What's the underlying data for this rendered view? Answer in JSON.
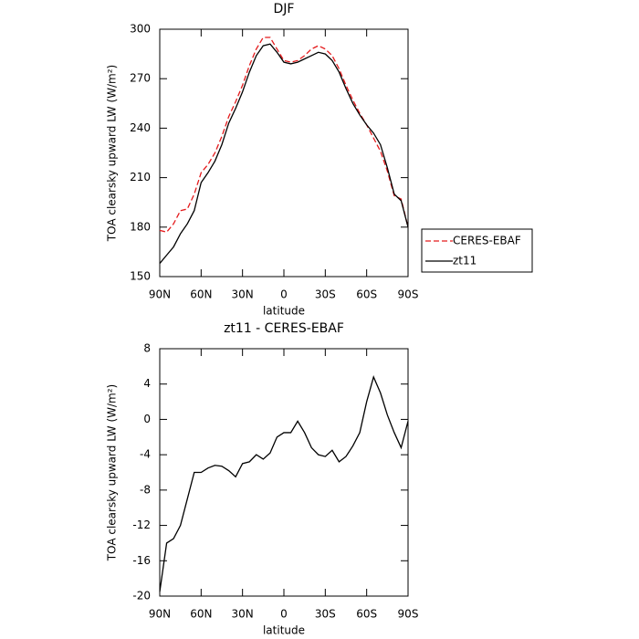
{
  "chart_data": [
    {
      "type": "line",
      "title": "DJF",
      "xlabel": "latitude",
      "ylabel": "TOA clearsky upward LW (W/m²)",
      "x": [
        90,
        85,
        80,
        75,
        70,
        65,
        60,
        55,
        50,
        45,
        40,
        35,
        30,
        25,
        20,
        15,
        10,
        5,
        0,
        -5,
        -10,
        -15,
        -20,
        -25,
        -30,
        -35,
        -40,
        -45,
        -50,
        -55,
        -60,
        -65,
        -70,
        -75,
        -80,
        -85,
        -90
      ],
      "xlim": [
        90,
        -90
      ],
      "xticks": [
        {
          "value": 90,
          "label": "90N"
        },
        {
          "value": 60,
          "label": "60N"
        },
        {
          "value": 30,
          "label": "30N"
        },
        0,
        {
          "value": -30,
          "label": "30S"
        },
        {
          "value": -60,
          "label": "60S"
        },
        {
          "value": -90,
          "label": "90S"
        }
      ],
      "ylim": [
        150,
        300
      ],
      "yticks": [
        150,
        180,
        210,
        240,
        270,
        300
      ],
      "legend": "outside right",
      "series": [
        {
          "name": "CERES-EBAF",
          "color": "#e41a1c",
          "linestyle": "dashed",
          "values": [
            178,
            177,
            182,
            190,
            191,
            200,
            213,
            218,
            225,
            235,
            247,
            256,
            266,
            278,
            288,
            295,
            295,
            288,
            281,
            280,
            281,
            284,
            288,
            290,
            288,
            284,
            276,
            266,
            257,
            249,
            242,
            234,
            226,
            214,
            199,
            197,
            180
          ]
        },
        {
          "name": "zt11",
          "color": "#000000",
          "linestyle": "solid",
          "values": [
            158,
            163,
            168,
            176,
            182,
            190,
            207,
            213,
            220,
            230,
            243,
            252,
            262,
            274,
            284,
            290,
            291,
            286,
            280,
            279,
            280,
            282,
            284,
            286,
            285,
            281,
            274,
            264,
            255,
            248,
            242,
            237,
            230,
            216,
            200,
            196,
            180
          ]
        }
      ]
    },
    {
      "type": "line",
      "title": "zt11 - CERES-EBAF",
      "xlabel": "latitude",
      "ylabel": "TOA clearsky upward LW (W/m²)",
      "x": [
        90,
        85,
        80,
        75,
        70,
        65,
        60,
        55,
        50,
        45,
        40,
        35,
        30,
        25,
        20,
        15,
        10,
        5,
        0,
        -5,
        -10,
        -15,
        -20,
        -25,
        -30,
        -35,
        -40,
        -45,
        -50,
        -55,
        -60,
        -65,
        -70,
        -75,
        -80,
        -85,
        -90
      ],
      "xlim": [
        90,
        -90
      ],
      "xticks": [
        {
          "value": 90,
          "label": "90N"
        },
        {
          "value": 60,
          "label": "60N"
        },
        {
          "value": 30,
          "label": "30N"
        },
        0,
        {
          "value": -30,
          "label": "30S"
        },
        {
          "value": -60,
          "label": "60S"
        },
        {
          "value": -90,
          "label": "90S"
        }
      ],
      "ylim": [
        -20,
        8
      ],
      "yticks": [
        -20,
        -16,
        -12,
        -8,
        -4,
        0,
        4,
        8
      ],
      "series": [
        {
          "color": "#000000",
          "linestyle": "solid",
          "values": [
            -19.5,
            -14,
            -13.5,
            -12,
            -9,
            -6,
            -6,
            -5.5,
            -5.2,
            -5.3,
            -5.8,
            -6.5,
            -5,
            -4.8,
            -4,
            -4.5,
            -3.8,
            -2,
            -1.5,
            -1.5,
            -0.2,
            -1.5,
            -3.2,
            -4,
            -4.2,
            -3.5,
            -4.8,
            -4.2,
            -3,
            -1.5,
            2,
            4.8,
            3,
            0.5,
            -1.5,
            -3.2,
            -0.2
          ]
        }
      ]
    }
  ]
}
